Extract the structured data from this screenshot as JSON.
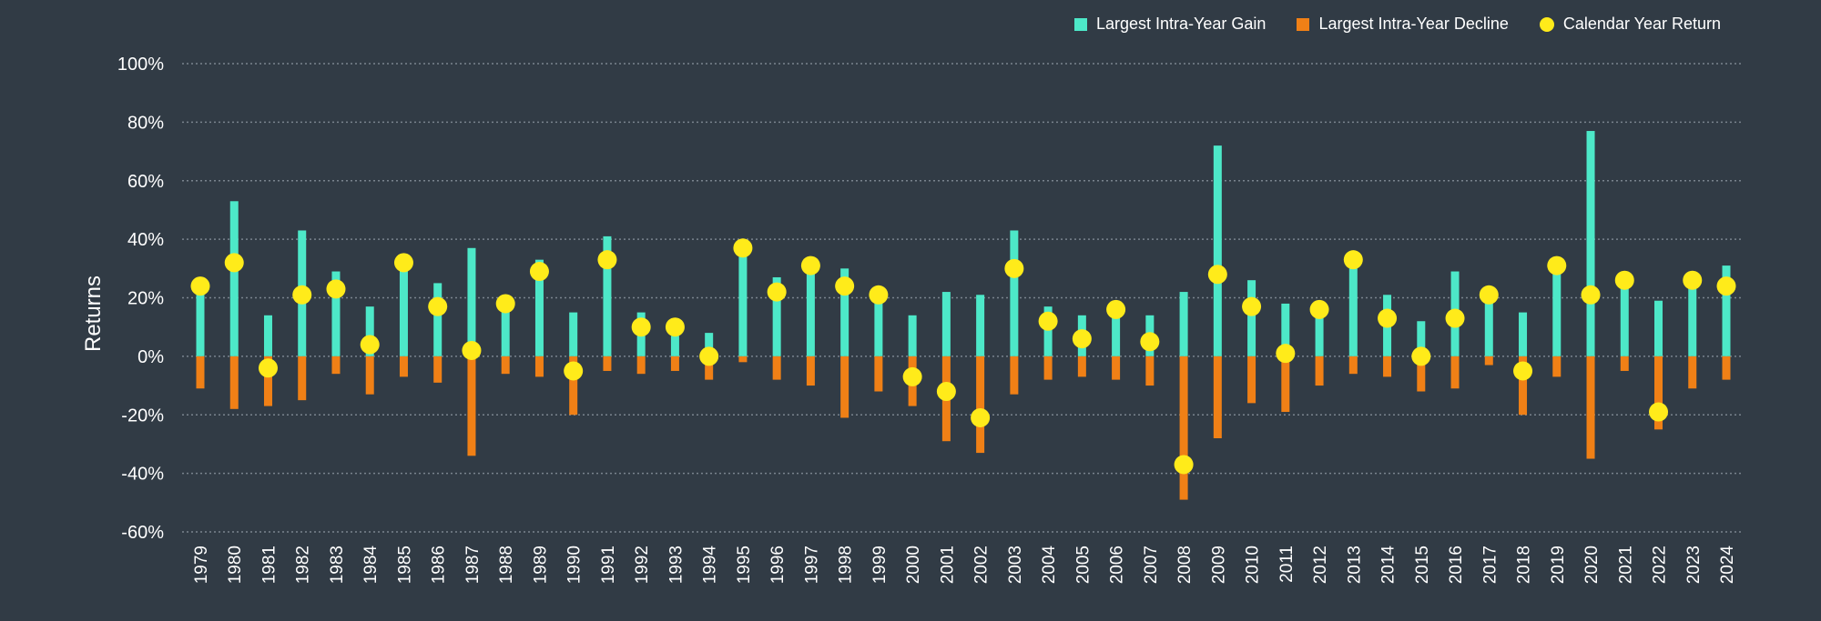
{
  "chart_data": {
    "type": "bar",
    "ylabel": "Returns",
    "ylim": [
      -60,
      100
    ],
    "yticks": [
      100,
      80,
      60,
      40,
      20,
      0,
      -20,
      -40,
      -60
    ],
    "ytick_labels": [
      "100%",
      "80%",
      "60%",
      "40%",
      "20%",
      "0%",
      "-20%",
      "-40%",
      "-60%"
    ],
    "grid": "horizontal dotted",
    "legend_position": "top-right",
    "categories": [
      "1979",
      "1980",
      "1981",
      "1982",
      "1983",
      "1984",
      "1985",
      "1986",
      "1987",
      "1988",
      "1989",
      "1990",
      "1991",
      "1992",
      "1993",
      "1994",
      "1995",
      "1996",
      "1997",
      "1998",
      "1999",
      "2000",
      "2001",
      "2002",
      "2003",
      "2004",
      "2005",
      "2006",
      "2007",
      "2008",
      "2009",
      "2010",
      "2011",
      "2012",
      "2013",
      "2014",
      "2015",
      "2016",
      "2017",
      "2018",
      "2019",
      "2020",
      "2021",
      "2022",
      "2023",
      "2024"
    ],
    "series": [
      {
        "name": "Largest Intra-Year Gain",
        "color": "#4de8c8",
        "marker": "bar",
        "values": [
          22,
          53,
          14,
          43,
          29,
          17,
          33,
          25,
          37,
          16,
          33,
          15,
          41,
          15,
          7,
          8,
          36,
          27,
          30,
          30,
          21,
          14,
          22,
          21,
          43,
          17,
          14,
          15,
          14,
          22,
          72,
          26,
          18,
          16,
          33,
          21,
          12,
          29,
          21,
          15,
          29,
          77,
          26,
          19,
          24,
          31
        ]
      },
      {
        "name": "Largest Intra-Year Decline",
        "color": "#f08016",
        "marker": "bar",
        "values": [
          -11,
          -18,
          -17,
          -15,
          -6,
          -13,
          -7,
          -9,
          -34,
          -6,
          -7,
          -20,
          -5,
          -6,
          -5,
          -8,
          -2,
          -8,
          -10,
          -21,
          -12,
          -17,
          -29,
          -33,
          -13,
          -8,
          -7,
          -8,
          -10,
          -49,
          -28,
          -16,
          -19,
          -10,
          -6,
          -7,
          -12,
          -11,
          -3,
          -20,
          -7,
          -35,
          -5,
          -25,
          -11,
          -8
        ]
      },
      {
        "name": "Calendar Year Return",
        "color": "#ffeb1a",
        "marker": "dot",
        "values": [
          24,
          32,
          -4,
          21,
          23,
          4,
          32,
          17,
          2,
          18,
          29,
          -5,
          33,
          10,
          10,
          0,
          37,
          22,
          31,
          24,
          21,
          -7,
          -12,
          -21,
          30,
          12,
          6,
          16,
          5,
          -37,
          28,
          17,
          1,
          16,
          33,
          13,
          0,
          13,
          21,
          -5,
          31,
          21,
          26,
          -19,
          26,
          24
        ]
      }
    ]
  }
}
